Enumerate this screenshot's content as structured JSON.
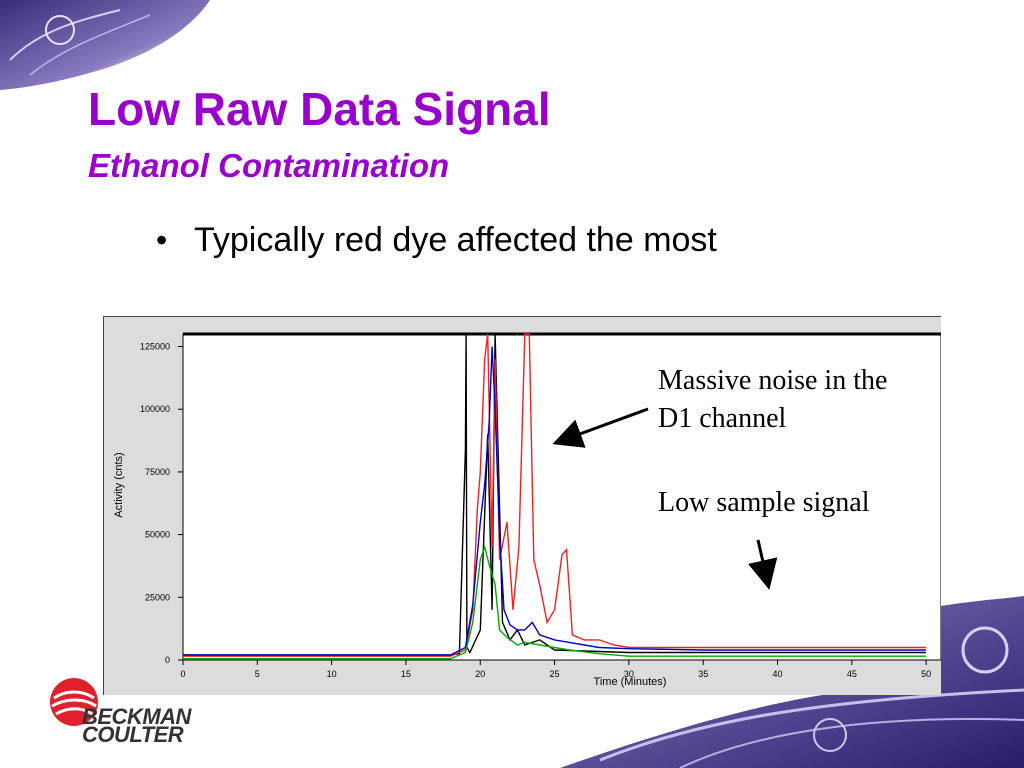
{
  "slide": {
    "title": "Low Raw Data Signal",
    "subtitle": "Ethanol Contamination",
    "bullet": "Typically red dye affected the most",
    "annotations": [
      "Massive noise in the D1 channel",
      "Low sample signal"
    ],
    "logo": {
      "line1": "BECKMAN",
      "line2": "COULTER"
    }
  },
  "colors": {
    "title": "#9900cc",
    "series_black": "#000000",
    "series_red": "#ee2222",
    "series_blue": "#0000cc",
    "series_green": "#00aa00"
  },
  "chart_data": {
    "type": "line",
    "xlabel": "Time (Minutes)",
    "ylabel": "Activity (cnts)",
    "xlim": [
      0,
      51
    ],
    "ylim": [
      0,
      130000
    ],
    "xticks": [
      0,
      5,
      10,
      15,
      20,
      25,
      30,
      35,
      40,
      45,
      50
    ],
    "yticks": [
      0,
      25000,
      50000,
      75000,
      100000,
      125000
    ],
    "grid": false,
    "series": [
      {
        "color": "#000000",
        "x": [
          0,
          18,
          18.6,
          19,
          19.05,
          19.1,
          19.3,
          20,
          20.5,
          20.8,
          21,
          21.5,
          22,
          22.5,
          23,
          24,
          25,
          30,
          35,
          40,
          45,
          50
        ],
        "values": [
          2000,
          2000,
          2500,
          84000,
          130000,
          5000,
          3000,
          12000,
          90000,
          20000,
          130000,
          15000,
          8000,
          12000,
          6000,
          8000,
          4000,
          3000,
          3000,
          3000,
          3000,
          3000
        ]
      },
      {
        "color": "#ee2222",
        "x": [
          0,
          18,
          19,
          19.5,
          19.8,
          20,
          20.3,
          20.5,
          20.8,
          21,
          21.3,
          21.8,
          22.2,
          22.6,
          23,
          23.3,
          23.6,
          24,
          24.5,
          25,
          25.5,
          25.8,
          26.2,
          27,
          28,
          29,
          30,
          35,
          40,
          45,
          50
        ],
        "values": [
          1500,
          1500,
          4000,
          20000,
          60000,
          75000,
          120000,
          130000,
          45000,
          120000,
          40000,
          55000,
          20000,
          45000,
          130000,
          130000,
          40000,
          30000,
          15000,
          20000,
          42000,
          44000,
          10000,
          8000,
          8000,
          6000,
          5000,
          5000,
          5000,
          5000,
          5000
        ]
      },
      {
        "color": "#0000cc",
        "x": [
          0,
          18,
          19,
          19.5,
          20,
          20.3,
          20.6,
          20.8,
          21,
          21.3,
          21.6,
          22,
          22.5,
          23,
          23.5,
          24,
          25,
          26,
          27,
          28,
          30,
          35,
          40,
          45,
          50
        ],
        "values": [
          2000,
          2000,
          5000,
          22000,
          55000,
          70000,
          95000,
          125000,
          100000,
          50000,
          20000,
          14000,
          12000,
          12000,
          15000,
          10000,
          8000,
          7000,
          6000,
          5000,
          4500,
          4000,
          4000,
          4000,
          4000
        ]
      },
      {
        "color": "#00aa00",
        "x": [
          0,
          18,
          19,
          19.5,
          20,
          20.3,
          20.6,
          21,
          21.3,
          21.8,
          22.5,
          23,
          24,
          25,
          26,
          28,
          30,
          35,
          40,
          45,
          50
        ],
        "values": [
          500,
          500,
          3000,
          15000,
          40000,
          45000,
          38000,
          30000,
          12000,
          9000,
          6000,
          7000,
          6000,
          5000,
          4000,
          2500,
          1500,
          1500,
          1500,
          1500,
          1500
        ]
      }
    ]
  }
}
